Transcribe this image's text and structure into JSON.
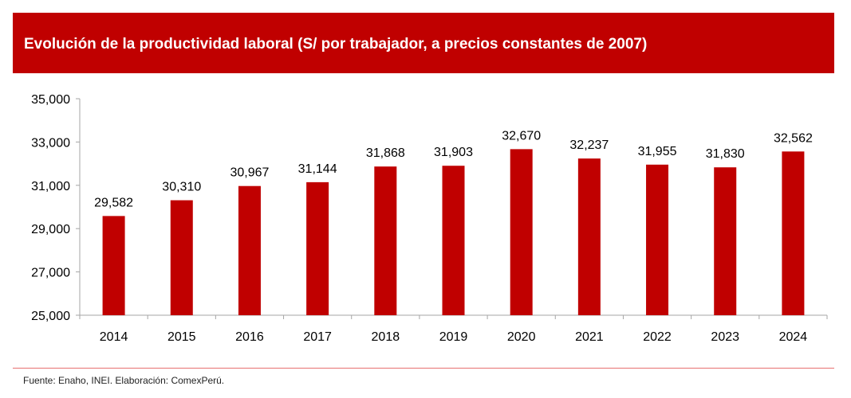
{
  "chart_data": {
    "type": "bar",
    "title": "Evolución de la productividad laboral (S/ por trabajador, a precios constantes de 2007)",
    "categories": [
      "2014",
      "2015",
      "2016",
      "2017",
      "2018",
      "2019",
      "2020",
      "2021",
      "2022",
      "2023",
      "2024"
    ],
    "values": [
      29582,
      30310,
      30967,
      31144,
      31868,
      31903,
      32670,
      32237,
      31955,
      31830,
      32562
    ],
    "data_labels": [
      "29,582",
      "30,310",
      "30,967",
      "31,144",
      "31,868",
      "31,903",
      "32,670",
      "32,237",
      "31,955",
      "31,830",
      "32,562"
    ],
    "ylim": [
      25000,
      35000
    ],
    "yticks": [
      25000,
      27000,
      29000,
      31000,
      33000,
      35000
    ],
    "ytick_labels": [
      "25,000",
      "27,000",
      "29,000",
      "31,000",
      "33,000",
      "35,000"
    ],
    "xlabel": "",
    "ylabel": "",
    "grid": false,
    "bar_color": "#c00000"
  },
  "footer": {
    "source": "Fuente: Enaho, INEI. Elaboración: ComexPerú."
  }
}
